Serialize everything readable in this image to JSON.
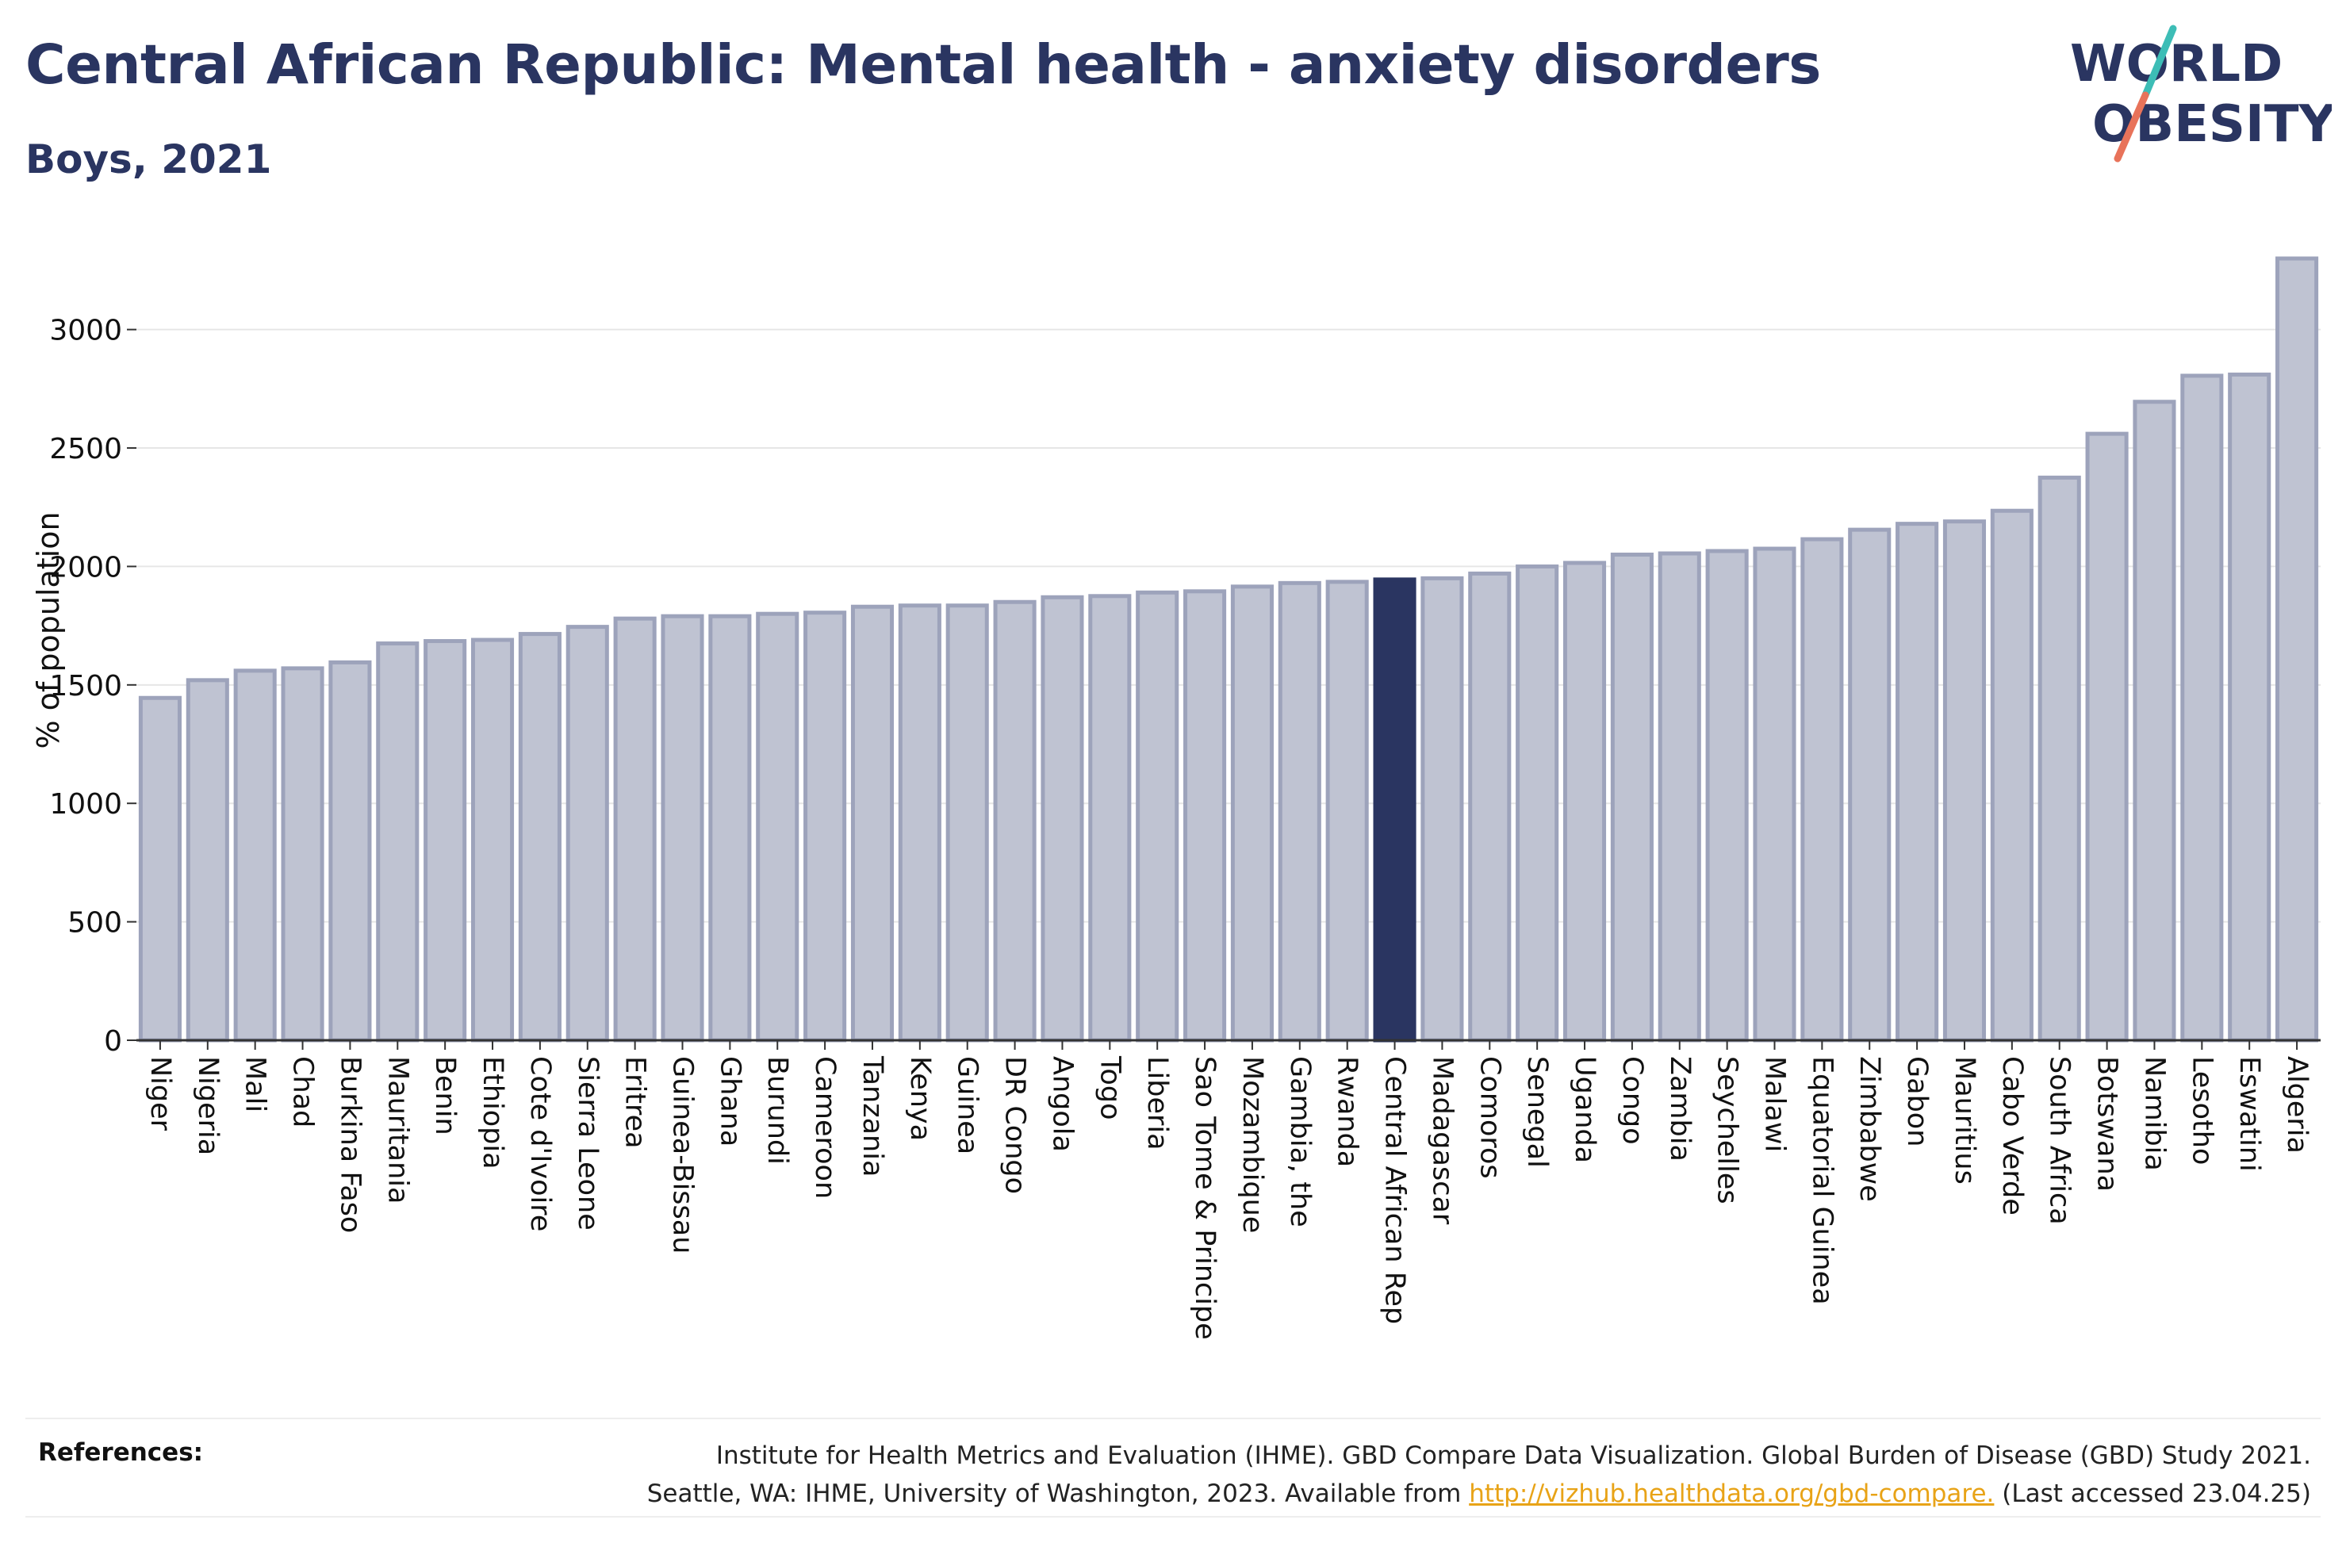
{
  "title": "Central African Republic: Mental health - anxiety disorders",
  "subtitle": "Boys, 2021",
  "logo": {
    "line1": "WORLD",
    "line2": "OBESITY",
    "slash_colors": [
      "#3dbdb6",
      "#e8735a"
    ]
  },
  "colors": {
    "bar": "#bfc3d2",
    "bar_stroke": "#9da3bb",
    "highlight": "#2a3561",
    "text": "#2a3561",
    "link": "#e8a317"
  },
  "chart_data": {
    "type": "bar",
    "title": "Central African Republic: Mental health - anxiety disorders",
    "subtitle": "Boys, 2021",
    "ylabel": "% of population",
    "xlabel": "",
    "ylim": [
      0,
      3300
    ],
    "yticks": [
      0,
      500,
      1000,
      1500,
      2000,
      2500,
      3000
    ],
    "grid": true,
    "highlight": "Central African Rep",
    "categories": [
      "Niger",
      "Nigeria",
      "Mali",
      "Chad",
      "Burkina Faso",
      "Mauritania",
      "Benin",
      "Ethiopia",
      "Cote d'Ivoire",
      "Sierra Leone",
      "Eritrea",
      "Guinea-Bissau",
      "Ghana",
      "Burundi",
      "Cameroon",
      "Tanzania",
      "Kenya",
      "Guinea",
      "DR Congo",
      "Angola",
      "Togo",
      "Liberia",
      "Sao Tome & Principe",
      "Mozambique",
      "Gambia, the",
      "Rwanda",
      "Central African Rep",
      "Madagascar",
      "Comoros",
      "Senegal",
      "Uganda",
      "Congo",
      "Zambia",
      "Seychelles",
      "Malawi",
      "Equatorial Guinea",
      "Zimbabwe",
      "Gabon",
      "Mauritius",
      "Cabo Verde",
      "South Africa",
      "Botswana",
      "Namibia",
      "Lesotho",
      "Eswatini",
      "Algeria"
    ],
    "values": [
      1445,
      1520,
      1560,
      1570,
      1595,
      1675,
      1685,
      1690,
      1715,
      1745,
      1780,
      1790,
      1790,
      1800,
      1805,
      1830,
      1835,
      1835,
      1850,
      1870,
      1875,
      1890,
      1895,
      1915,
      1930,
      1935,
      1945,
      1950,
      1970,
      2000,
      2015,
      2050,
      2055,
      2065,
      2075,
      2115,
      2155,
      2180,
      2190,
      2235,
      2375,
      2560,
      2695,
      2805,
      2810,
      3300
    ]
  },
  "references": {
    "label": "References:",
    "line1": "Institute for Health Metrics and Evaluation (IHME). GBD Compare Data Visualization. Global Burden of Disease (GBD) Study 2021.",
    "line2_prefix": "Seattle, WA: IHME, University of Washington, 2023. Available from ",
    "link_text": "http://vizhub.healthdata.org/gbd-compare.",
    "line2_suffix": " (Last accessed 23.04.25)"
  }
}
